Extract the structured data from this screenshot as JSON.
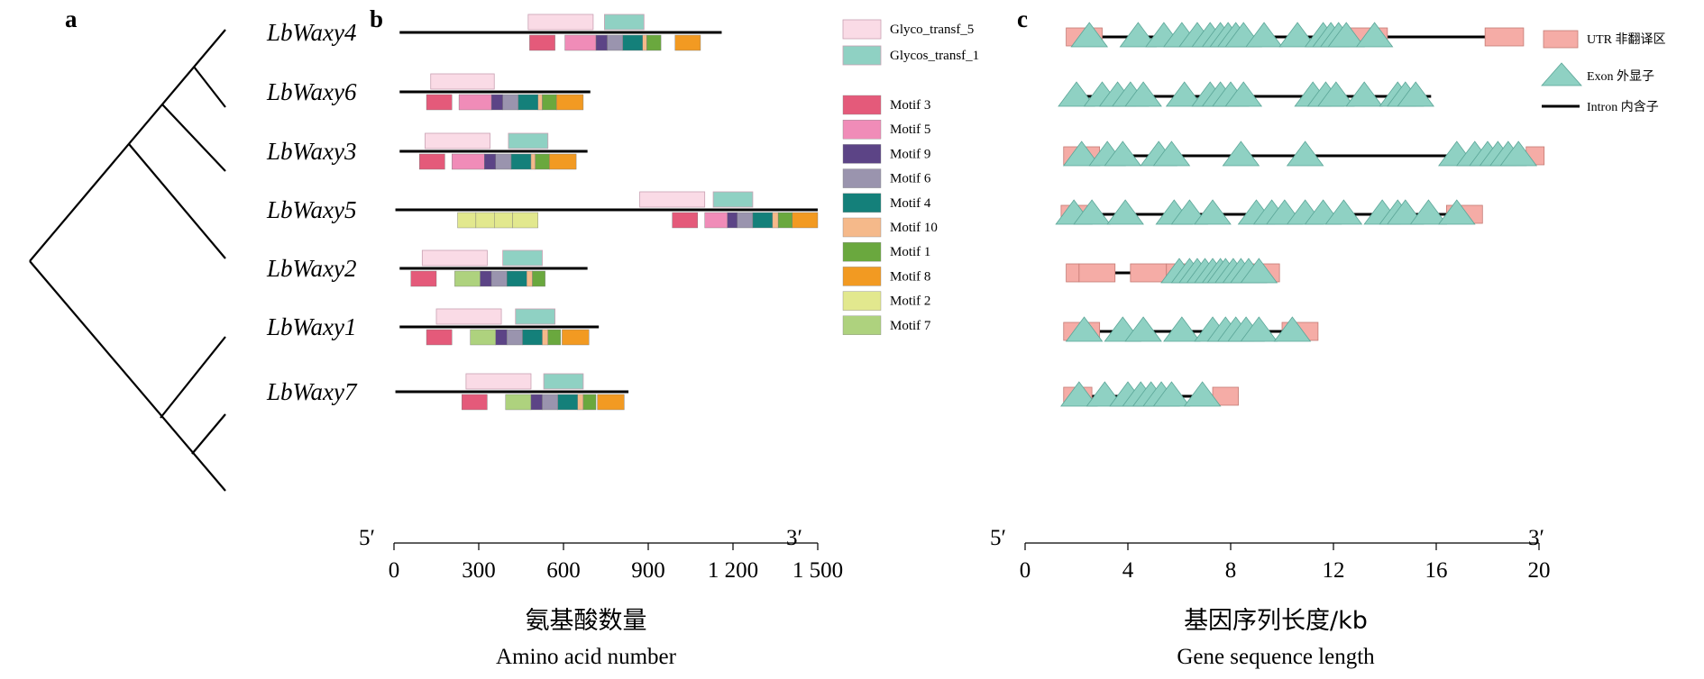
{
  "panels": {
    "a": {
      "letter": "a"
    },
    "b": {
      "letter": "b",
      "five_prime": "5′",
      "three_prime": "3′",
      "xlabel_cn": "氨基酸数量",
      "xlabel_en": "Amino acid number"
    },
    "c": {
      "letter": "c",
      "five_prime": "5′",
      "three_prime": "3′",
      "xlabel_cn": "基因序列长度/kb",
      "xlabel_en": "Gene sequence length"
    }
  },
  "genes": [
    "LbWaxy4",
    "LbWaxy6",
    "LbWaxy3",
    "LbWaxy5",
    "LbWaxy2",
    "LbWaxy1",
    "LbWaxy7"
  ],
  "chart_data": [
    {
      "type": "diagram",
      "panel": "b",
      "xlim": [
        0,
        1500
      ],
      "ticks": [
        0,
        300,
        600,
        900,
        1200,
        1500
      ],
      "tick_labels": [
        "0",
        "300",
        "600",
        "900",
        "1 200",
        "1 500"
      ],
      "domain_legend": [
        {
          "name": "Glyco_transf_5",
          "color": "#fadbe6"
        },
        {
          "name": "Glycos_transf_1",
          "color": "#8fd1c3"
        }
      ],
      "motif_legend": [
        {
          "name": "Motif 3",
          "color": "#e45a7a"
        },
        {
          "name": "Motif 5",
          "color": "#f08cb8"
        },
        {
          "name": "Motif 9",
          "color": "#5c4486"
        },
        {
          "name": "Motif 6",
          "color": "#9a94ae"
        },
        {
          "name": "Motif 4",
          "color": "#14807a"
        },
        {
          "name": "Motif 10",
          "color": "#f5b98a"
        },
        {
          "name": "Motif 1",
          "color": "#6aa83e"
        },
        {
          "name": "Motif 8",
          "color": "#f29a22"
        },
        {
          "name": "Motif 2",
          "color": "#e2e88e"
        },
        {
          "name": "Motif 7",
          "color": "#aed27e"
        }
      ],
      "proteins": [
        {
          "gene": "LbWaxy4",
          "start": 20,
          "end": 1160,
          "domains": [
            {
              "name": "Glyco_transf_5",
              "start": 475,
              "end": 705
            },
            {
              "name": "Glycos_transf_1",
              "start": 745,
              "end": 885
            }
          ],
          "motifs": [
            {
              "name": "Motif 3",
              "start": 480,
              "end": 570
            },
            {
              "name": "Motif 5",
              "start": 605,
              "end": 715
            },
            {
              "name": "Motif 9",
              "start": 715,
              "end": 755
            },
            {
              "name": "Motif 6",
              "start": 755,
              "end": 810
            },
            {
              "name": "Motif 4",
              "start": 810,
              "end": 880
            },
            {
              "name": "Motif 10",
              "start": 880,
              "end": 895
            },
            {
              "name": "Motif 1",
              "start": 895,
              "end": 945
            },
            {
              "name": "Motif 8",
              "start": 995,
              "end": 1085
            }
          ]
        },
        {
          "gene": "LbWaxy6",
          "start": 20,
          "end": 695,
          "domains": [
            {
              "name": "Glyco_transf_5",
              "start": 130,
              "end": 355
            }
          ],
          "motifs": [
            {
              "name": "Motif 3",
              "start": 115,
              "end": 205
            },
            {
              "name": "Motif 5",
              "start": 230,
              "end": 345
            },
            {
              "name": "Motif 9",
              "start": 345,
              "end": 385
            },
            {
              "name": "Motif 6",
              "start": 385,
              "end": 440
            },
            {
              "name": "Motif 4",
              "start": 440,
              "end": 510
            },
            {
              "name": "Motif 10",
              "start": 510,
              "end": 525
            },
            {
              "name": "Motif 1",
              "start": 525,
              "end": 575
            },
            {
              "name": "Motif 8",
              "start": 575,
              "end": 670
            }
          ]
        },
        {
          "gene": "LbWaxy3",
          "start": 20,
          "end": 685,
          "domains": [
            {
              "name": "Glyco_transf_5",
              "start": 110,
              "end": 340
            },
            {
              "name": "Glycos_transf_1",
              "start": 405,
              "end": 545
            }
          ],
          "motifs": [
            {
              "name": "Motif 3",
              "start": 90,
              "end": 180
            },
            {
              "name": "Motif 5",
              "start": 205,
              "end": 320
            },
            {
              "name": "Motif 9",
              "start": 320,
              "end": 360
            },
            {
              "name": "Motif 6",
              "start": 360,
              "end": 415
            },
            {
              "name": "Motif 4",
              "start": 415,
              "end": 485
            },
            {
              "name": "Motif 10",
              "start": 485,
              "end": 500
            },
            {
              "name": "Motif 1",
              "start": 500,
              "end": 550
            },
            {
              "name": "Motif 8",
              "start": 550,
              "end": 645
            }
          ]
        },
        {
          "gene": "LbWaxy5",
          "start": 5,
          "end": 1500,
          "domains": [
            {
              "name": "Glyco_transf_5",
              "start": 870,
              "end": 1100
            },
            {
              "name": "Glycos_transf_1",
              "start": 1130,
              "end": 1270
            }
          ],
          "motifs": [
            {
              "name": "Motif 2",
              "start": 225,
              "end": 290
            },
            {
              "name": "Motif 2",
              "start": 290,
              "end": 355
            },
            {
              "name": "Motif 2",
              "start": 355,
              "end": 420
            },
            {
              "name": "Motif 2",
              "start": 420,
              "end": 510
            },
            {
              "name": "Motif 3",
              "start": 985,
              "end": 1075
            },
            {
              "name": "Motif 5",
              "start": 1100,
              "end": 1180
            },
            {
              "name": "Motif 9",
              "start": 1180,
              "end": 1215
            },
            {
              "name": "Motif 6",
              "start": 1215,
              "end": 1270
            },
            {
              "name": "Motif 4",
              "start": 1270,
              "end": 1340
            },
            {
              "name": "Motif 10",
              "start": 1340,
              "end": 1360
            },
            {
              "name": "Motif 1",
              "start": 1360,
              "end": 1410
            },
            {
              "name": "Motif 8",
              "start": 1410,
              "end": 1500
            }
          ]
        },
        {
          "gene": "LbWaxy2",
          "start": 20,
          "end": 685,
          "domains": [
            {
              "name": "Glyco_transf_5",
              "start": 100,
              "end": 330
            },
            {
              "name": "Glycos_transf_1",
              "start": 385,
              "end": 525
            }
          ],
          "motifs": [
            {
              "name": "Motif 3",
              "start": 60,
              "end": 150
            },
            {
              "name": "Motif 7",
              "start": 215,
              "end": 305
            },
            {
              "name": "Motif 9",
              "start": 305,
              "end": 345
            },
            {
              "name": "Motif 6",
              "start": 345,
              "end": 400
            },
            {
              "name": "Motif 4",
              "start": 400,
              "end": 470
            },
            {
              "name": "Motif 10",
              "start": 470,
              "end": 490
            },
            {
              "name": "Motif 1",
              "start": 490,
              "end": 535
            }
          ]
        },
        {
          "gene": "LbWaxy1",
          "start": 20,
          "end": 725,
          "domains": [
            {
              "name": "Glyco_transf_5",
              "start": 150,
              "end": 380
            },
            {
              "name": "Glycos_transf_1",
              "start": 430,
              "end": 570
            }
          ],
          "motifs": [
            {
              "name": "Motif 3",
              "start": 115,
              "end": 205
            },
            {
              "name": "Motif 7",
              "start": 270,
              "end": 360
            },
            {
              "name": "Motif 9",
              "start": 360,
              "end": 400
            },
            {
              "name": "Motif 6",
              "start": 400,
              "end": 455
            },
            {
              "name": "Motif 4",
              "start": 455,
              "end": 525
            },
            {
              "name": "Motif 10",
              "start": 525,
              "end": 545
            },
            {
              "name": "Motif 1",
              "start": 545,
              "end": 590
            },
            {
              "name": "Motif 8",
              "start": 595,
              "end": 690
            }
          ]
        },
        {
          "gene": "LbWaxy7",
          "start": 5,
          "end": 830,
          "domains": [
            {
              "name": "Glyco_transf_5",
              "start": 255,
              "end": 485
            },
            {
              "name": "Glycos_transf_1",
              "start": 530,
              "end": 670
            }
          ],
          "motifs": [
            {
              "name": "Motif 3",
              "start": 240,
              "end": 330
            },
            {
              "name": "Motif 7",
              "start": 395,
              "end": 485
            },
            {
              "name": "Motif 9",
              "start": 485,
              "end": 525
            },
            {
              "name": "Motif 6",
              "start": 525,
              "end": 580
            },
            {
              "name": "Motif 4",
              "start": 580,
              "end": 650
            },
            {
              "name": "Motif 10",
              "start": 650,
              "end": 670
            },
            {
              "name": "Motif 1",
              "start": 670,
              "end": 715
            },
            {
              "name": "Motif 8",
              "start": 720,
              "end": 815
            }
          ]
        }
      ]
    },
    {
      "type": "diagram",
      "panel": "c",
      "xlim": [
        0,
        20
      ],
      "ticks": [
        0,
        4,
        8,
        12,
        16,
        20
      ],
      "tick_labels": [
        "0",
        "4",
        "8",
        "12",
        "16",
        "20"
      ],
      "legend": [
        {
          "name": "UTR",
          "label_cn": "非翻译区",
          "color": "#f5aca6"
        },
        {
          "name": "Exon",
          "label_cn": "外显子",
          "color": "#8fd1c3"
        },
        {
          "name": "Intron",
          "label_cn": "内含子",
          "color": "#000000"
        }
      ],
      "genes": [
        {
          "gene": "LbWaxy4",
          "start": 1.6,
          "end": 19.4,
          "utrs": [
            [
              1.6,
              3.0
            ],
            [
              12.6,
              14.1
            ],
            [
              17.9,
              19.4
            ]
          ],
          "exons": [
            2.5,
            4.4,
            5.4,
            6.1,
            6.7,
            7.2,
            7.6,
            7.9,
            8.2,
            8.5,
            9.3,
            10.6,
            11.6,
            11.9,
            12.2,
            12.5,
            13.6
          ]
        },
        {
          "gene": "LbWaxy6",
          "start": 1.6,
          "end": 15.8,
          "utrs": [],
          "exons": [
            2.0,
            3.0,
            3.6,
            4.1,
            4.6,
            6.2,
            7.2,
            7.6,
            8.0,
            8.5,
            11.2,
            11.7,
            12.1,
            13.2,
            14.5,
            14.8,
            15.2
          ]
        },
        {
          "gene": "LbWaxy3",
          "start": 1.5,
          "end": 20.2,
          "utrs": [
            [
              1.5,
              2.9
            ],
            [
              19.5,
              20.2
            ]
          ],
          "exons": [
            2.2,
            3.2,
            3.8,
            5.2,
            5.7,
            8.4,
            10.9,
            16.8,
            17.5,
            18.0,
            18.4,
            18.8,
            19.2
          ]
        },
        {
          "gene": "LbWaxy5",
          "start": 1.4,
          "end": 17.8,
          "utrs": [
            [
              1.4,
              2.7
            ],
            [
              16.4,
              17.8
            ]
          ],
          "exons": [
            1.9,
            2.6,
            3.9,
            5.8,
            6.4,
            7.3,
            9.0,
            9.6,
            10.1,
            10.9,
            11.6,
            12.4,
            13.9,
            14.5,
            14.8,
            15.7,
            16.8
          ]
        },
        {
          "gene": "LbWaxy2",
          "start": 1.6,
          "end": 9.9,
          "utrs": [
            [
              1.6,
              2.1
            ],
            [
              2.1,
              3.5
            ],
            [
              4.1,
              5.5
            ],
            [
              5.5,
              9.9
            ]
          ],
          "exons": [
            6.0,
            6.4,
            6.7,
            7.0,
            7.3,
            7.6,
            7.8,
            8.1,
            8.4,
            8.7,
            9.1
          ]
        },
        {
          "gene": "LbWaxy1",
          "start": 1.5,
          "end": 11.4,
          "utrs": [
            [
              1.5,
              2.9
            ],
            [
              10.0,
              11.4
            ]
          ],
          "exons": [
            2.3,
            3.8,
            4.6,
            6.1,
            7.3,
            7.8,
            8.2,
            8.6,
            9.1,
            10.4
          ]
        },
        {
          "gene": "LbWaxy7",
          "start": 1.5,
          "end": 8.3,
          "utrs": [
            [
              1.5,
              2.6
            ],
            [
              7.3,
              8.3
            ]
          ],
          "exons": [
            2.1,
            3.1,
            4.0,
            4.5,
            4.9,
            5.3,
            5.7,
            6.9
          ]
        }
      ]
    }
  ]
}
